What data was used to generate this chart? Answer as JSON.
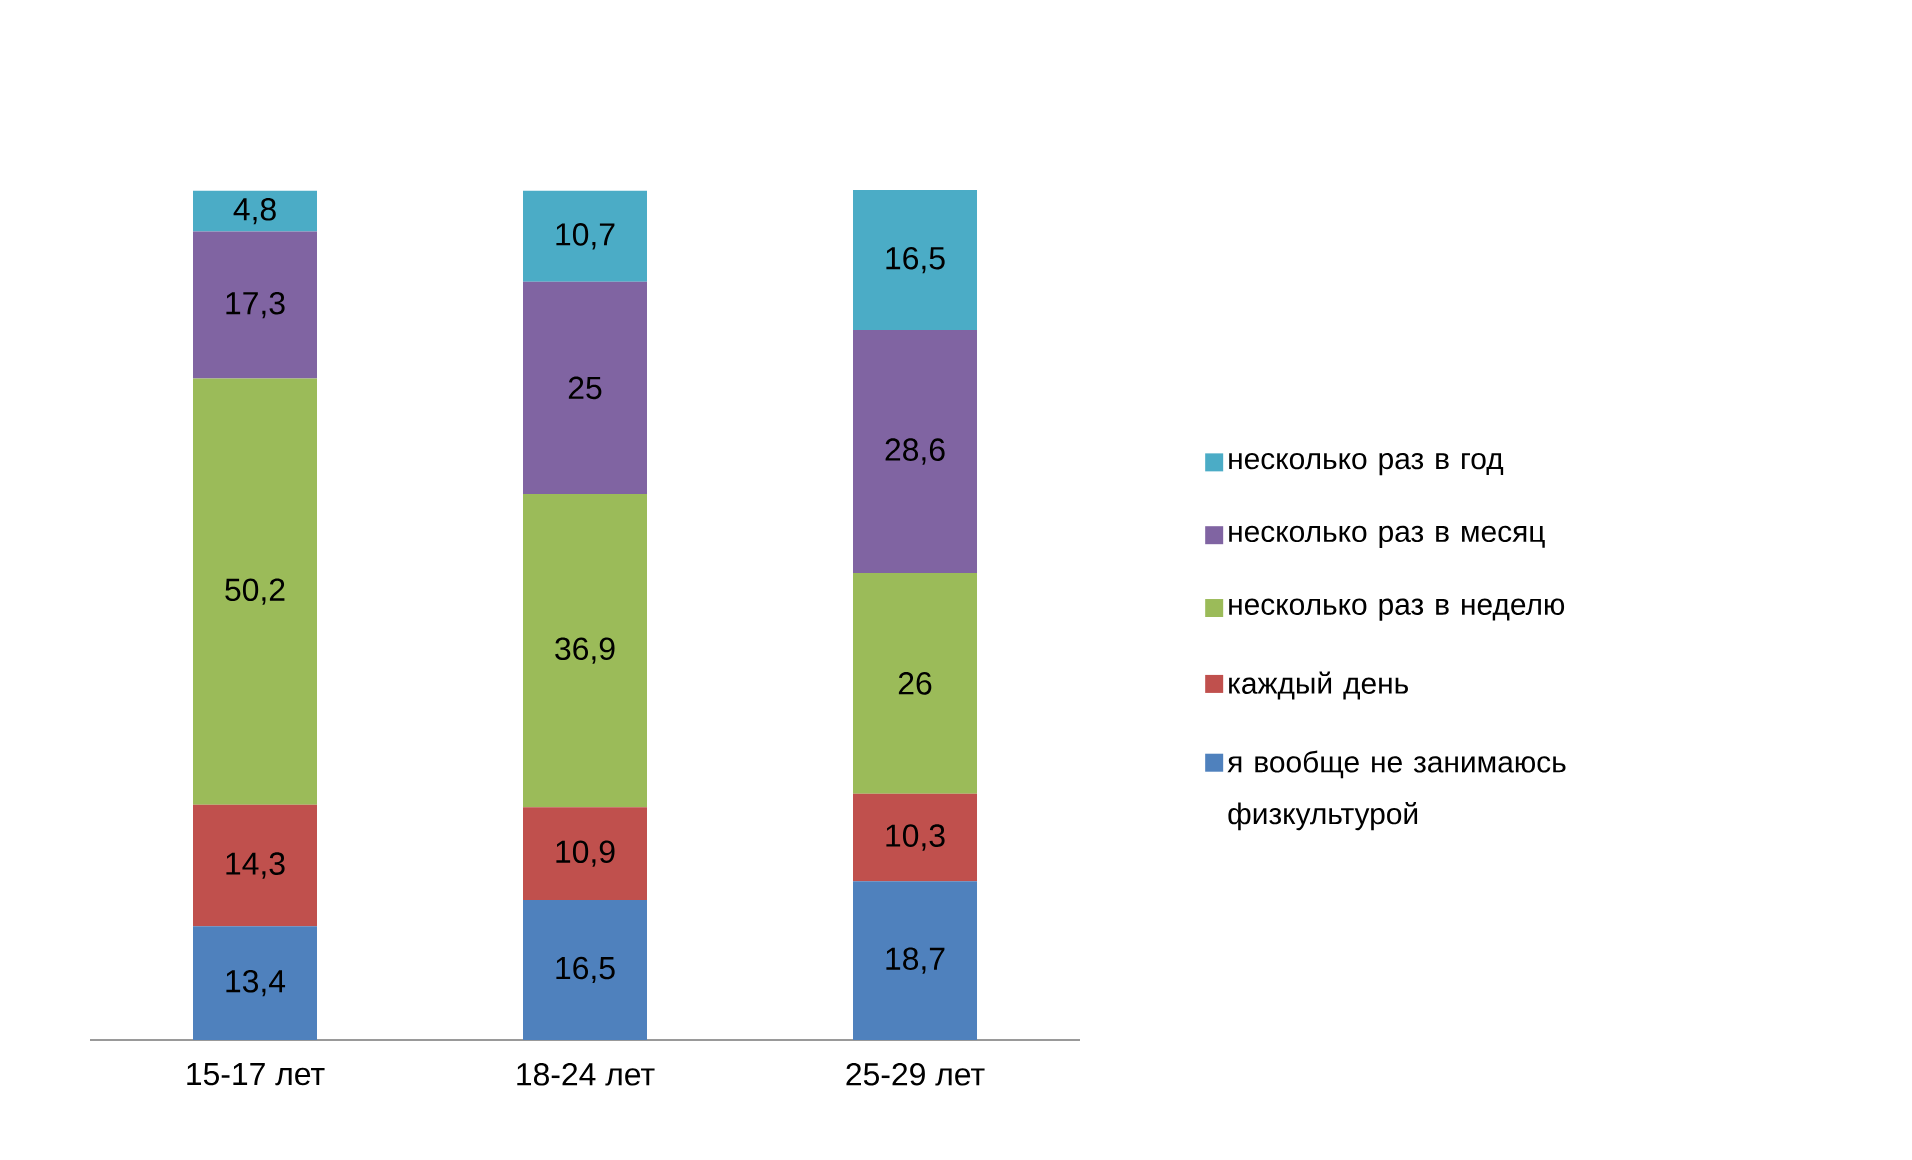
{
  "chart_data": {
    "type": "bar",
    "stacked": true,
    "legend": "right",
    "categories": [
      "15-17 лет",
      "18-24 лет",
      "25-29 лет"
    ],
    "series": [
      {
        "name": "я вообще не занимаюсь физкультурой",
        "color": "#4f81bd",
        "values": [
          13.4,
          16.5,
          18.7
        ],
        "value_labels": [
          "13,4",
          "16,5",
          "18,7"
        ]
      },
      {
        "name": "каждый день",
        "color": "#c0504d",
        "values": [
          14.3,
          10.9,
          10.3
        ],
        "value_labels": [
          "14,3",
          "10,9",
          "10,3"
        ]
      },
      {
        "name": "несколько раз в неделю",
        "color": "#9bbb59",
        "values": [
          50.2,
          36.9,
          26
        ],
        "value_labels": [
          "50,2",
          "36,9",
          "26"
        ]
      },
      {
        "name": "несколько раз в месяц",
        "color": "#8064a2",
        "values": [
          17.3,
          25,
          28.6
        ],
        "value_labels": [
          "17,3",
          "25",
          "28,6"
        ]
      },
      {
        "name": "несколько раз в год",
        "color": "#4bacc6",
        "values": [
          4.8,
          10.7,
          16.5
        ],
        "value_labels": [
          "4,8",
          "10,7",
          "16,5"
        ]
      }
    ]
  }
}
